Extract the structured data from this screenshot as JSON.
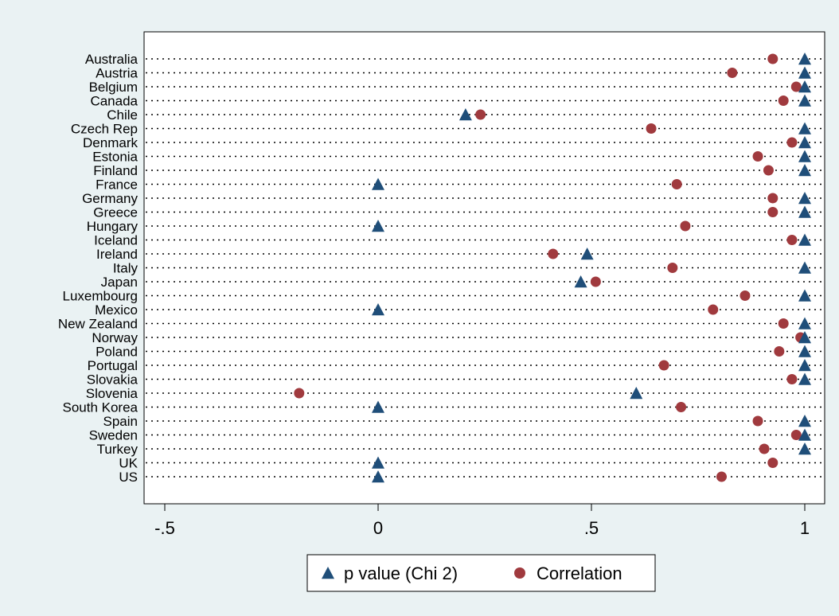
{
  "chart_data": {
    "type": "scatter",
    "orientation": "horizontal-dot-plot",
    "categories": [
      "Australia",
      "Austria",
      "Belgium",
      "Canada",
      "Chile",
      "Czech Rep",
      "Denmark",
      "Estonia",
      "Finland",
      "France",
      "Germany",
      "Greece",
      "Hungary",
      "Iceland",
      "Ireland",
      "Italy",
      "Japan",
      "Luxembourg",
      "Mexico",
      "New Zealand",
      "Norway",
      "Poland",
      "Portugal",
      "Slovakia",
      "Slovenia",
      "South Korea",
      "Spain",
      "Sweden",
      "Turkey",
      "UK",
      "US"
    ],
    "series": [
      {
        "name": "p value (Chi 2)",
        "marker": "triangle",
        "color": "#1f4e79",
        "values": [
          1.0,
          1.0,
          1.0,
          1.0,
          0.205,
          1.0,
          1.0,
          1.0,
          1.0,
          0.0,
          1.0,
          1.0,
          0.0,
          1.0,
          0.49,
          1.0,
          0.475,
          1.0,
          0.0,
          1.0,
          1.0,
          1.0,
          1.0,
          1.0,
          0.605,
          0.0,
          1.0,
          1.0,
          1.0,
          0.0,
          0.0
        ]
      },
      {
        "name": "Correlation",
        "marker": "circle",
        "color": "#a03a3e",
        "values": [
          0.925,
          0.83,
          0.98,
          0.95,
          0.24,
          0.64,
          0.97,
          0.89,
          0.915,
          0.7,
          0.925,
          0.925,
          0.72,
          0.97,
          0.41,
          0.69,
          0.51,
          0.86,
          0.785,
          0.95,
          0.99,
          0.94,
          0.67,
          0.97,
          -0.185,
          0.71,
          0.89,
          0.98,
          0.905,
          0.925,
          0.805
        ]
      }
    ],
    "xticks": [
      "-.5",
      "0",
      ".5",
      "1"
    ],
    "xtick_values": [
      -0.5,
      0,
      0.5,
      1
    ],
    "xlim": [
      -0.55,
      1.07
    ],
    "grid": "dotted horizontal lines per category",
    "legend": "bottom-center"
  }
}
